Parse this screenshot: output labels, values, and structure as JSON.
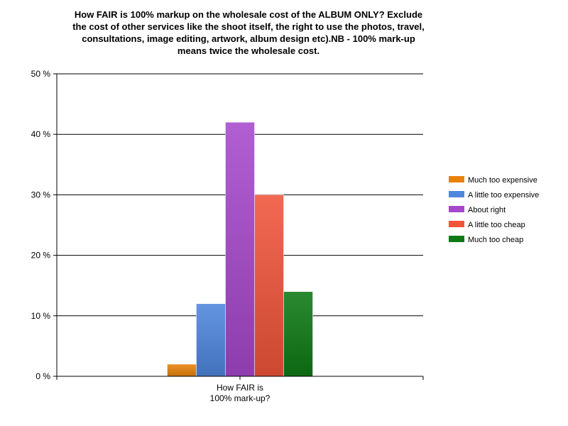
{
  "chart_data": {
    "type": "bar",
    "title": "How FAIR is 100% markup on the wholesale cost of the ALBUM ONLY? Exclude\nthe cost of other services like the shoot itself, the right to use the photos, travel,\nconsultations, image editing, artwork, album design etc).NB - 100% mark-up\nmeans twice the wholesale cost.",
    "categories": [
      "How FAIR is\n100% mark-up?"
    ],
    "ylim": [
      0,
      50
    ],
    "yticks": [
      0,
      10,
      20,
      30,
      40,
      50
    ],
    "ytick_labels": [
      "0 %",
      "10 %",
      "20 %",
      "30 %",
      "40 %",
      "50 %"
    ],
    "grid": true,
    "legend_position": "right",
    "series": [
      {
        "name": "Much too expensive",
        "values": [
          2
        ],
        "color": "#e8820c"
      },
      {
        "name": "A little too expensive",
        "values": [
          12
        ],
        "color": "#4f86dd"
      },
      {
        "name": "About right",
        "values": [
          42
        ],
        "color": "#a648cc"
      },
      {
        "name": "A little too cheap",
        "values": [
          30
        ],
        "color": "#f0553a"
      },
      {
        "name": "Much too cheap",
        "values": [
          14
        ],
        "color": "#0e7a15"
      }
    ]
  }
}
